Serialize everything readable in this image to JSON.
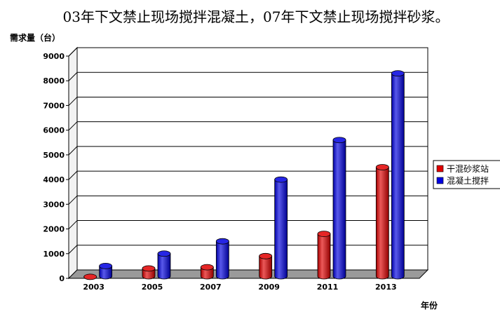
{
  "headline": "03年下文禁止现场搅拌混凝土，07年下文禁止现场搅拌砂浆。",
  "chart_data": {
    "type": "bar",
    "title": "",
    "ylabel": "需求量（台）",
    "xlabel": "年份",
    "categories": [
      "2003",
      "2005",
      "2007",
      "2009",
      "2011",
      "2013"
    ],
    "ylim": [
      0,
      9000
    ],
    "yticks": [
      0,
      1000,
      2000,
      3000,
      4000,
      5000,
      6000,
      7000,
      8000,
      9000
    ],
    "grid": true,
    "legend": "right",
    "series": [
      {
        "name": "干混砂浆站",
        "color": "#e00000",
        "values": [
          60,
          400,
          450,
          900,
          1800,
          4500
        ]
      },
      {
        "name": "混凝土搅拌",
        "color": "#0000e0",
        "values": [
          500,
          1000,
          1500,
          4000,
          5600,
          8300
        ]
      }
    ]
  }
}
